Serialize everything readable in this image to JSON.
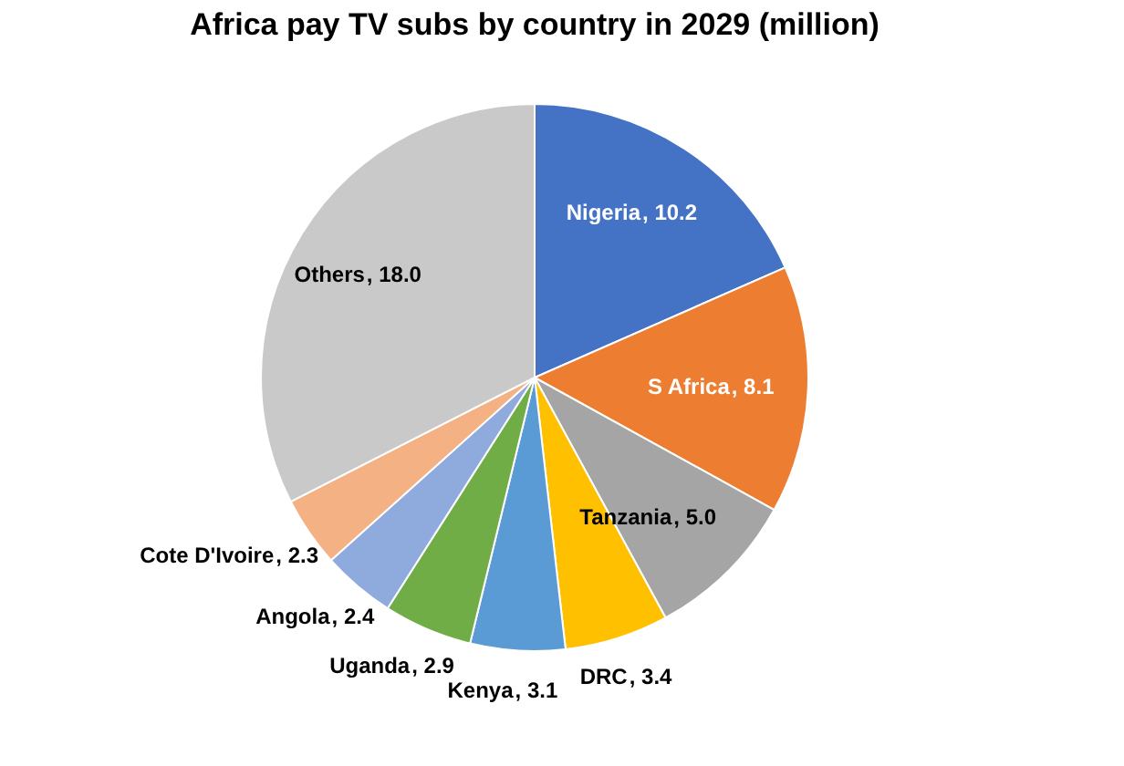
{
  "chart_data": {
    "type": "pie",
    "title": "Africa pay TV subs by country in 2029 (million)",
    "categories": [
      "Nigeria",
      "S Africa",
      "Tanzania",
      "DRC",
      "Kenya",
      "Uganda",
      "Angola",
      "Cote D'Ivoire",
      "Others"
    ],
    "values": [
      10.2,
      8.1,
      5.0,
      3.4,
      3.1,
      2.9,
      2.4,
      2.3,
      18.0
    ],
    "colors": [
      "#4472c4",
      "#ed7d31",
      "#a5a5a5",
      "#ffc000",
      "#5b9bd5",
      "#70ad47",
      "#8faadc",
      "#f4b183",
      "#c9c9c9"
    ],
    "value_labels": [
      ", 10.2",
      ", 8.1",
      ", 5.0",
      ", 3.4",
      ", 3.1",
      ", 2.9",
      ", 2.4",
      ", 2.3",
      ", 18.0"
    ],
    "legend": false
  }
}
